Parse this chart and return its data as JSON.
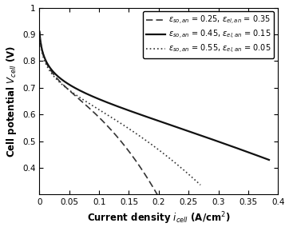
{
  "title": "",
  "xlabel": "Current density $i_{cell}$ (A/cm$^2$)",
  "ylabel": "Cell potential $V_{cell}$ (V)",
  "xlim": [
    0,
    0.4
  ],
  "ylim": [
    0.3,
    1.0
  ],
  "xticks": [
    0,
    0.05,
    0.1,
    0.15,
    0.2,
    0.25,
    0.3,
    0.35,
    0.4
  ],
  "yticks": [
    0.4,
    0.5,
    0.6,
    0.7,
    0.8,
    0.9,
    1.0
  ],
  "curves": [
    {
      "label": "$\\varepsilon_{so,an}$ = 0.25, $\\varepsilon_{el,an}$ = 0.35",
      "linestyle": "dashed",
      "color": "#333333",
      "linewidth": 1.2,
      "x_end": 0.2,
      "V0": 0.91,
      "A": 0.055,
      "i_ref": 0.0018,
      "R": 0.55,
      "C": 0.25,
      "alpha": 2.5
    },
    {
      "label": "$\\varepsilon_{so,an}$ = 0.45, $\\varepsilon_{el,an}$ = 0.15",
      "linestyle": "solid",
      "color": "#111111",
      "linewidth": 1.6,
      "x_end": 0.385,
      "V0": 0.91,
      "A": 0.055,
      "i_ref": 0.0018,
      "R": 0.22,
      "C": 0.1,
      "alpha": 1.8
    },
    {
      "label": "$\\varepsilon_{so,an}$ = 0.55, $\\varepsilon_{el,an}$ = 0.05",
      "linestyle": "dotted",
      "color": "#333333",
      "linewidth": 1.2,
      "x_end": 0.27,
      "V0": 0.9,
      "A": 0.055,
      "i_ref": 0.0018,
      "R": 0.4,
      "C": 0.18,
      "alpha": 2.2
    }
  ],
  "legend_loc": "upper right",
  "legend_fontsize": 7.0,
  "axis_label_fontsize": 8.5,
  "tick_fontsize": 7.5,
  "background_color": "#ffffff",
  "figure_background": "#ffffff"
}
